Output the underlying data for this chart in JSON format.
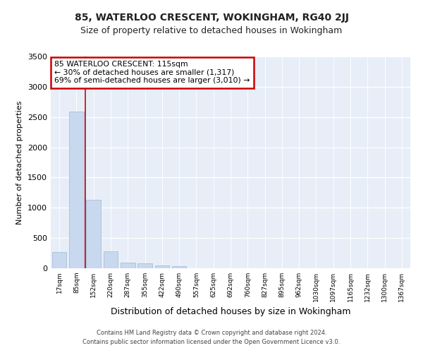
{
  "title": "85, WATERLOO CRESCENT, WOKINGHAM, RG40 2JJ",
  "subtitle": "Size of property relative to detached houses in Wokingham",
  "xlabel": "Distribution of detached houses by size in Wokingham",
  "ylabel": "Number of detached properties",
  "bar_labels": [
    "17sqm",
    "85sqm",
    "152sqm",
    "220sqm",
    "287sqm",
    "355sqm",
    "422sqm",
    "490sqm",
    "557sqm",
    "625sqm",
    "692sqm",
    "760sqm",
    "827sqm",
    "895sqm",
    "962sqm",
    "1030sqm",
    "1097sqm",
    "1165sqm",
    "1232sqm",
    "1300sqm",
    "1367sqm"
  ],
  "bar_values": [
    270,
    2590,
    1130,
    280,
    90,
    80,
    50,
    30,
    0,
    0,
    0,
    0,
    0,
    0,
    0,
    0,
    0,
    0,
    0,
    0,
    0
  ],
  "bar_color": "#c8d8ee",
  "bar_edge_color": "#9eb8d8",
  "red_line_x": 1.5,
  "annotation_text": "85 WATERLOO CRESCENT: 115sqm\n← 30% of detached houses are smaller (1,317)\n69% of semi-detached houses are larger (3,010) →",
  "annotation_box_color": "#ffffff",
  "annotation_border_color": "#cc0000",
  "ylim": [
    0,
    3500
  ],
  "yticks": [
    0,
    500,
    1000,
    1500,
    2000,
    2500,
    3000,
    3500
  ],
  "plot_bg_color": "#e8eef8",
  "footer_line1": "Contains HM Land Registry data © Crown copyright and database right 2024.",
  "footer_line2": "Contains public sector information licensed under the Open Government Licence v3.0.",
  "title_fontsize": 10,
  "subtitle_fontsize": 9,
  "ylabel_fontsize": 8,
  "xlabel_fontsize": 9
}
